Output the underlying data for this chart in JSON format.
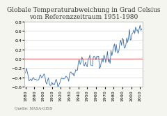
{
  "title": "Globale Temperaturabweichung in Grad Celsius\nvom Referenzzeitraum 1951-1980",
  "source": "Quelle: NASA-GISS",
  "years": [
    1880,
    1881,
    1882,
    1883,
    1884,
    1885,
    1886,
    1887,
    1888,
    1889,
    1890,
    1891,
    1892,
    1893,
    1894,
    1895,
    1896,
    1897,
    1898,
    1899,
    1900,
    1901,
    1902,
    1903,
    1904,
    1905,
    1906,
    1907,
    1908,
    1909,
    1910,
    1911,
    1912,
    1913,
    1914,
    1915,
    1916,
    1917,
    1918,
    1919,
    1920,
    1921,
    1922,
    1923,
    1924,
    1925,
    1926,
    1927,
    1928,
    1929,
    1930,
    1931,
    1932,
    1933,
    1934,
    1935,
    1936,
    1937,
    1938,
    1939,
    1940,
    1941,
    1942,
    1943,
    1944,
    1945,
    1946,
    1947,
    1948,
    1949,
    1950,
    1951,
    1952,
    1953,
    1954,
    1955,
    1956,
    1957,
    1958,
    1959,
    1960,
    1961,
    1962,
    1963,
    1964,
    1965,
    1966,
    1967,
    1968,
    1969,
    1970,
    1971,
    1972,
    1973,
    1974,
    1975,
    1976,
    1977,
    1978,
    1979,
    1980,
    1981,
    1982,
    1983,
    1984,
    1985,
    1986,
    1987,
    1988,
    1989,
    1990,
    1991,
    1992,
    1993,
    1994,
    1995,
    1996,
    1997,
    1998,
    1999,
    2000,
    2001,
    2002,
    2003,
    2004,
    2005,
    2006,
    2007,
    2008,
    2009,
    2010,
    2011,
    2012
  ],
  "values": [
    -0.3,
    -0.2,
    -0.28,
    -0.37,
    -0.47,
    -0.45,
    -0.43,
    -0.47,
    -0.42,
    -0.4,
    -0.44,
    -0.44,
    -0.44,
    -0.46,
    -0.45,
    -0.45,
    -0.37,
    -0.34,
    -0.4,
    -0.39,
    -0.36,
    -0.32,
    -0.37,
    -0.5,
    -0.54,
    -0.46,
    -0.41,
    -0.53,
    -0.57,
    -0.56,
    -0.5,
    -0.55,
    -0.53,
    -0.55,
    -0.46,
    -0.44,
    -0.52,
    -0.64,
    -0.55,
    -0.51,
    -0.44,
    -0.41,
    -0.42,
    -0.43,
    -0.42,
    -0.41,
    -0.37,
    -0.39,
    -0.41,
    -0.48,
    -0.32,
    -0.28,
    -0.29,
    -0.33,
    -0.31,
    -0.37,
    -0.31,
    -0.23,
    -0.25,
    -0.24,
    -0.06,
    -0.02,
    -0.12,
    -0.07,
    0.04,
    -0.01,
    -0.14,
    -0.15,
    -0.07,
    -0.13,
    -0.17,
    -0.01,
    0.01,
    0.08,
    -0.13,
    -0.14,
    -0.15,
    0.04,
    0.06,
    0.03,
    -0.02,
    0.06,
    0.04,
    0.06,
    -0.21,
    -0.17,
    -0.07,
    0.01,
    -0.07,
    0.08,
    0.03,
    -0.08,
    0.01,
    0.16,
    -0.07,
    -0.01,
    -0.1,
    0.18,
    0.07,
    0.16,
    0.26,
    0.32,
    0.14,
    0.31,
    0.16,
    0.12,
    0.18,
    0.33,
    0.4,
    0.29,
    0.44,
    0.41,
    0.23,
    0.24,
    0.31,
    0.45,
    0.35,
    0.46,
    0.63,
    0.4,
    0.42,
    0.54,
    0.56,
    0.62,
    0.54,
    0.68,
    0.61,
    0.62,
    0.54,
    0.64,
    0.72,
    0.61,
    0.64
  ],
  "line_color": "#3a6ea5",
  "refline_color": "#e07070",
  "bg_color": "#f5f5f0",
  "plot_bg": "#ffffff",
  "ylim": [
    -0.6,
    0.8
  ],
  "yticks": [
    -0.6,
    -0.4,
    -0.2,
    0.0,
    0.2,
    0.4,
    0.6,
    0.8
  ],
  "xtick_years": [
    1880,
    1890,
    1900,
    1910,
    1920,
    1930,
    1940,
    1950,
    1960,
    1970,
    1980,
    1990,
    2000,
    2010
  ],
  "title_fontsize": 6.5,
  "tick_fontsize": 4.5,
  "source_fontsize": 4.0
}
